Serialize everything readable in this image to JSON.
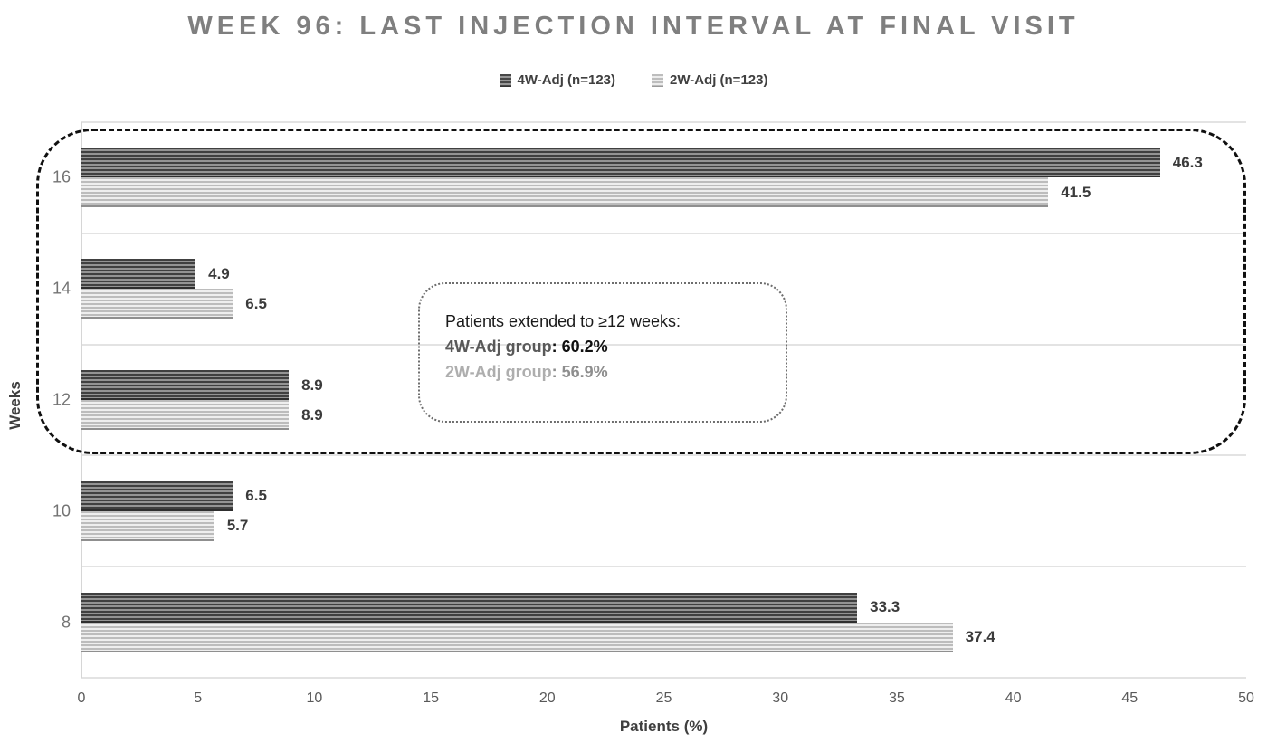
{
  "title": "WEEK 96: LAST INJECTION INTERVAL AT FINAL VISIT",
  "chart_data": {
    "type": "bar",
    "orientation": "horizontal",
    "title": "WEEK 96: LAST INJECTION INTERVAL AT FINAL VISIT",
    "categories": [
      "16",
      "14",
      "12",
      "10",
      "8"
    ],
    "series": [
      {
        "name": "4W-Adj (n=123)",
        "style": "dark-striped",
        "color": "#4a4a4a",
        "values": [
          46.3,
          4.9,
          8.9,
          6.5,
          33.3
        ]
      },
      {
        "name": "2W-Adj (n=123)",
        "style": "light-striped",
        "color": "#c9c9c9",
        "values": [
          41.5,
          6.5,
          8.9,
          5.7,
          37.4
        ]
      }
    ],
    "xlabel": "Patients (%)",
    "ylabel": "Weeks",
    "xlim": [
      0,
      50
    ],
    "x_ticks": [
      0,
      5,
      10,
      15,
      20,
      25,
      30,
      35,
      40,
      45,
      50
    ],
    "grid": "horizontal category separators only",
    "legend_position": "top"
  },
  "annotation": {
    "title": "Patients extended to ≥12 weeks:",
    "lines": [
      {
        "label": "4W-Adj group",
        "value": ": 60.2%"
      },
      {
        "label": "2W-Adj group",
        "value": ": 56.9%"
      }
    ]
  },
  "highlight": {
    "note": "dashed rounded outline enclosing weeks 12, 14 and 16"
  },
  "colors": {
    "title_text": "#7f7f7f",
    "dark_series": "#4a4a4a",
    "light_series": "#c9c9c9",
    "value_labels": "#3b3b3b",
    "gridline": "#e3e3e3",
    "dashed_outline": "#101010"
  }
}
